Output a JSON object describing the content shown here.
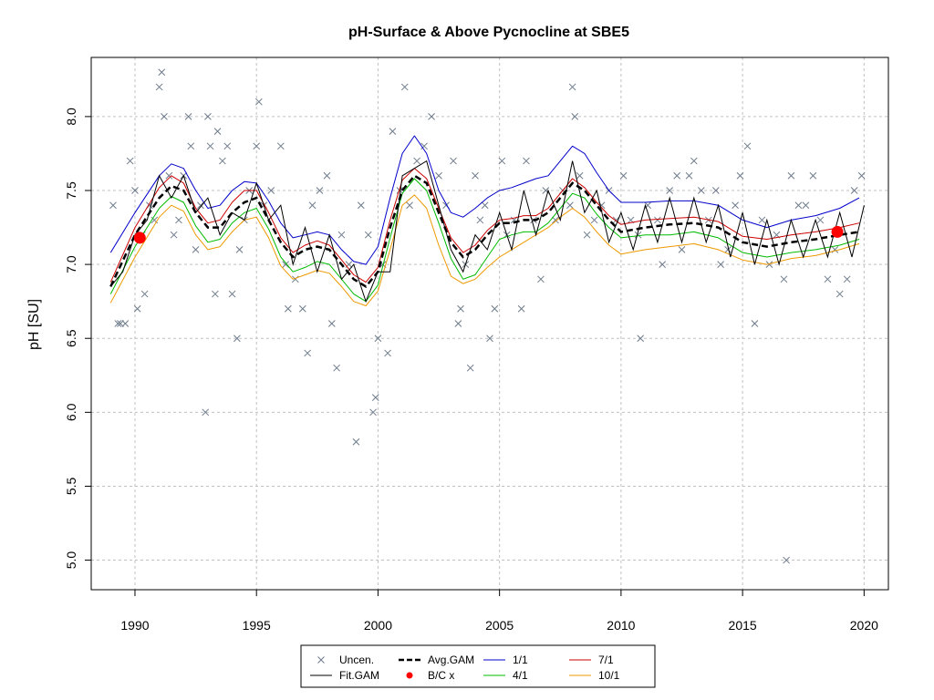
{
  "chart_data": {
    "type": "scatter",
    "title": "pH-Surface & Above Pycnocline at SBE5",
    "xlabel": "",
    "ylabel": "pH [SU]",
    "xlim": [
      1988.2,
      2021.0
    ],
    "ylim": [
      4.8,
      8.4
    ],
    "x_ticks": [
      "1990",
      "1995",
      "2000",
      "2005",
      "2010",
      "2015",
      "2020"
    ],
    "y_ticks": [
      "5.0",
      "5.5",
      "6.0",
      "6.5",
      "7.0",
      "7.5",
      "8.0"
    ],
    "grid": true,
    "legend_position": "bottom",
    "legend": [
      {
        "key": "uncen",
        "label": "Uncen.",
        "symbol": "x",
        "color": "#6e7b8b"
      },
      {
        "key": "avg_gam",
        "label": "Avg.GAM",
        "symbol": "dashed-line",
        "color": "#000000"
      },
      {
        "key": "s_1_1",
        "label": "1/1",
        "symbol": "line",
        "color": "#0000cc"
      },
      {
        "key": "s_7_1",
        "label": "7/1",
        "symbol": "line",
        "color": "#cc0000"
      },
      {
        "key": "fit_gam",
        "label": "Fit.GAM",
        "symbol": "line",
        "color": "#000000"
      },
      {
        "key": "bc_x",
        "label": "B/C x",
        "symbol": "dot",
        "color": "#ff0000"
      },
      {
        "key": "s_4_1",
        "label": "4/1",
        "symbol": "line",
        "color": "#00bb00"
      },
      {
        "key": "s_10_1",
        "label": "10/1",
        "symbol": "line",
        "color": "#ee9900"
      }
    ],
    "colors": {
      "uncen": "#6e7b8b",
      "avg_gam": "#000000",
      "fit_gam": "#000000",
      "s_1_1": "#0000cc",
      "s_7_1": "#cc0000",
      "s_4_1": "#00bb00",
      "s_10_1": "#ee9900",
      "bc_x": "#ff0000",
      "grid": "#c0c0c0"
    },
    "uncensored_points": [
      [
        1989.1,
        7.4
      ],
      [
        1989.3,
        6.6
      ],
      [
        1989.4,
        6.6
      ],
      [
        1989.6,
        6.6
      ],
      [
        1989.8,
        7.7
      ],
      [
        1990.0,
        7.5
      ],
      [
        1990.1,
        6.7
      ],
      [
        1990.3,
        7.2
      ],
      [
        1990.4,
        6.8
      ],
      [
        1990.6,
        7.4
      ],
      [
        1990.8,
        7.3
      ],
      [
        1991.0,
        8.2
      ],
      [
        1991.1,
        8.3
      ],
      [
        1991.2,
        8.0
      ],
      [
        1991.4,
        7.6
      ],
      [
        1991.6,
        7.2
      ],
      [
        1991.8,
        7.3
      ],
      [
        1992.0,
        7.6
      ],
      [
        1992.2,
        8.0
      ],
      [
        1992.3,
        7.8
      ],
      [
        1992.5,
        7.1
      ],
      [
        1992.7,
        7.4
      ],
      [
        1992.9,
        6.0
      ],
      [
        1993.0,
        8.0
      ],
      [
        1993.1,
        7.8
      ],
      [
        1993.3,
        6.8
      ],
      [
        1993.4,
        7.9
      ],
      [
        1993.6,
        7.7
      ],
      [
        1993.8,
        7.8
      ],
      [
        1994.0,
        6.8
      ],
      [
        1994.2,
        6.5
      ],
      [
        1994.3,
        7.1
      ],
      [
        1994.5,
        7.3
      ],
      [
        1994.7,
        7.5
      ],
      [
        1995.0,
        7.8
      ],
      [
        1995.1,
        8.1
      ],
      [
        1995.3,
        7.4
      ],
      [
        1995.6,
        7.5
      ],
      [
        1996.0,
        7.8
      ],
      [
        1996.2,
        7.0
      ],
      [
        1996.3,
        6.7
      ],
      [
        1996.6,
        6.9
      ],
      [
        1996.9,
        6.7
      ],
      [
        1997.1,
        6.4
      ],
      [
        1997.3,
        7.4
      ],
      [
        1997.6,
        7.5
      ],
      [
        1997.9,
        7.6
      ],
      [
        1998.1,
        6.6
      ],
      [
        1998.3,
        6.3
      ],
      [
        1998.5,
        7.2
      ],
      [
        1998.8,
        7.0
      ],
      [
        1999.1,
        5.8
      ],
      [
        1999.3,
        7.4
      ],
      [
        1999.6,
        7.2
      ],
      [
        1999.8,
        6.0
      ],
      [
        1999.9,
        6.1
      ],
      [
        2000.0,
        6.5
      ],
      [
        2000.2,
        7.0
      ],
      [
        2000.4,
        6.4
      ],
      [
        2000.6,
        7.9
      ],
      [
        2000.9,
        7.5
      ],
      [
        2001.1,
        8.2
      ],
      [
        2001.3,
        7.4
      ],
      [
        2001.6,
        7.7
      ],
      [
        2001.9,
        7.8
      ],
      [
        2002.2,
        8.0
      ],
      [
        2002.5,
        7.6
      ],
      [
        2002.8,
        7.4
      ],
      [
        2003.1,
        7.7
      ],
      [
        2003.3,
        6.6
      ],
      [
        2003.4,
        6.7
      ],
      [
        2003.6,
        7.0
      ],
      [
        2003.8,
        6.3
      ],
      [
        2004.0,
        7.6
      ],
      [
        2004.2,
        7.3
      ],
      [
        2004.4,
        7.4
      ],
      [
        2004.6,
        6.5
      ],
      [
        2004.8,
        6.7
      ],
      [
        2005.1,
        7.7
      ],
      [
        2005.3,
        7.2
      ],
      [
        2005.6,
        7.3
      ],
      [
        2005.9,
        6.7
      ],
      [
        2006.1,
        7.7
      ],
      [
        2006.4,
        7.3
      ],
      [
        2006.7,
        6.9
      ],
      [
        2006.9,
        7.5
      ],
      [
        2007.3,
        7.3
      ],
      [
        2007.6,
        7.5
      ],
      [
        2007.9,
        7.4
      ],
      [
        2008.0,
        8.2
      ],
      [
        2008.1,
        8.0
      ],
      [
        2008.3,
        7.6
      ],
      [
        2008.6,
        7.2
      ],
      [
        2008.9,
        7.3
      ],
      [
        2009.2,
        7.4
      ],
      [
        2009.5,
        7.5
      ],
      [
        2009.8,
        7.3
      ],
      [
        2010.1,
        7.6
      ],
      [
        2010.4,
        7.3
      ],
      [
        2010.7,
        7.2
      ],
      [
        2010.8,
        6.5
      ],
      [
        2011.1,
        7.4
      ],
      [
        2011.5,
        7.3
      ],
      [
        2011.7,
        7.0
      ],
      [
        2012.0,
        7.5
      ],
      [
        2012.3,
        7.6
      ],
      [
        2012.5,
        7.1
      ],
      [
        2012.8,
        7.6
      ],
      [
        2013.0,
        7.7
      ],
      [
        2013.3,
        7.5
      ],
      [
        2013.6,
        7.3
      ],
      [
        2013.9,
        7.5
      ],
      [
        2014.1,
        7.0
      ],
      [
        2014.4,
        7.1
      ],
      [
        2014.7,
        7.4
      ],
      [
        2014.9,
        7.6
      ],
      [
        2015.2,
        7.8
      ],
      [
        2015.5,
        6.6
      ],
      [
        2015.8,
        7.3
      ],
      [
        2016.1,
        7.0
      ],
      [
        2016.4,
        7.2
      ],
      [
        2016.7,
        6.9
      ],
      [
        2016.8,
        5.0
      ],
      [
        2017.0,
        7.6
      ],
      [
        2017.3,
        7.4
      ],
      [
        2017.6,
        7.4
      ],
      [
        2017.9,
        7.6
      ],
      [
        2018.2,
        7.3
      ],
      [
        2018.5,
        6.9
      ],
      [
        2018.8,
        7.1
      ],
      [
        2019.0,
        6.8
      ],
      [
        2019.3,
        6.9
      ],
      [
        2019.6,
        7.5
      ],
      [
        2019.9,
        7.6
      ]
    ],
    "fit_gam": {
      "x": [
        1989.0,
        1989.5,
        1990.0,
        1990.5,
        1991.0,
        1991.5,
        1992.0,
        1992.5,
        1993.0,
        1993.5,
        1994.0,
        1994.5,
        1995.0,
        1995.5,
        1996.0,
        1996.5,
        1997.0,
        1997.5,
        1998.0,
        1998.5,
        1999.0,
        1999.5,
        2000.0,
        2000.5,
        2001.0,
        2001.5,
        2002.0,
        2002.5,
        2003.0,
        2003.5,
        2004.0,
        2004.5,
        2005.0,
        2005.5,
        2006.0,
        2006.5,
        2007.0,
        2007.5,
        2008.0,
        2008.5,
        2009.0,
        2009.5,
        2010.0,
        2010.5,
        2011.0,
        2011.5,
        2012.0,
        2012.5,
        2013.0,
        2013.5,
        2014.0,
        2014.5,
        2015.0,
        2015.5,
        2016.0,
        2016.5,
        2017.0,
        2017.5,
        2018.0,
        2018.5,
        2019.0,
        2019.5,
        2020.0
      ],
      "y": [
        6.85,
        6.95,
        7.2,
        7.3,
        7.6,
        7.45,
        7.6,
        7.35,
        7.45,
        7.2,
        7.35,
        7.3,
        7.55,
        7.3,
        7.4,
        7.0,
        7.25,
        6.95,
        7.2,
        6.9,
        7.0,
        6.75,
        6.95,
        6.95,
        7.6,
        7.65,
        7.7,
        7.4,
        7.1,
        6.95,
        7.2,
        7.1,
        7.35,
        7.1,
        7.5,
        7.2,
        7.5,
        7.3,
        7.7,
        7.35,
        7.5,
        7.15,
        7.35,
        7.1,
        7.4,
        7.15,
        7.45,
        7.15,
        7.45,
        7.15,
        7.4,
        7.05,
        7.35,
        7.0,
        7.3,
        7.0,
        7.3,
        7.05,
        7.3,
        7.05,
        7.35,
        7.05,
        7.4
      ]
    },
    "avg_gam": {
      "x": [
        1989.0,
        1990.0,
        1991.0,
        1991.5,
        1992.0,
        1992.5,
        1993.0,
        1993.5,
        1994.0,
        1994.5,
        1995.0,
        1995.5,
        1996.0,
        1996.5,
        1997.0,
        1997.5,
        1998.0,
        1998.5,
        1999.0,
        1999.5,
        2000.0,
        2000.5,
        2001.0,
        2001.5,
        2002.0,
        2002.5,
        2003.0,
        2003.5,
        2004.0,
        2004.5,
        2005.0,
        2005.5,
        2006.0,
        2006.5,
        2007.0,
        2007.5,
        2008.0,
        2008.5,
        2009.0,
        2009.5,
        2010.0,
        2011.0,
        2012.0,
        2013.0,
        2014.0,
        2015.0,
        2016.0,
        2017.0,
        2018.0,
        2019.0,
        2019.8
      ],
      "y": [
        6.85,
        7.2,
        7.45,
        7.53,
        7.5,
        7.35,
        7.25,
        7.25,
        7.35,
        7.42,
        7.45,
        7.3,
        7.15,
        7.05,
        7.1,
        7.12,
        7.1,
        7.0,
        6.9,
        6.85,
        6.95,
        7.25,
        7.5,
        7.6,
        7.55,
        7.35,
        7.15,
        7.05,
        7.1,
        7.2,
        7.28,
        7.28,
        7.3,
        7.3,
        7.35,
        7.45,
        7.55,
        7.5,
        7.4,
        7.3,
        7.22,
        7.25,
        7.27,
        7.28,
        7.25,
        7.15,
        7.12,
        7.15,
        7.17,
        7.2,
        7.22
      ]
    },
    "seasonal_curves": [
      {
        "key": "s_1_1",
        "x": [
          1989.0,
          1990.0,
          1991.0,
          1991.5,
          1992.0,
          1992.5,
          1993.0,
          1993.5,
          1994.0,
          1994.5,
          1995.0,
          1995.5,
          1996.0,
          1996.5,
          1997.0,
          1997.5,
          1998.0,
          1998.5,
          1999.0,
          1999.5,
          2000.0,
          2000.5,
          2001.0,
          2001.5,
          2002.0,
          2002.5,
          2003.0,
          2003.5,
          2004.0,
          2004.5,
          2005.0,
          2005.5,
          2006.0,
          2006.5,
          2007.0,
          2007.5,
          2008.0,
          2008.5,
          2009.0,
          2009.5,
          2010.0,
          2011.0,
          2012.0,
          2013.0,
          2014.0,
          2015.0,
          2016.0,
          2017.0,
          2018.0,
          2019.0,
          2019.8
        ],
        "y": [
          7.08,
          7.35,
          7.6,
          7.68,
          7.65,
          7.5,
          7.38,
          7.4,
          7.5,
          7.56,
          7.55,
          7.43,
          7.28,
          7.18,
          7.2,
          7.22,
          7.2,
          7.1,
          7.02,
          7.0,
          7.12,
          7.45,
          7.75,
          7.87,
          7.75,
          7.5,
          7.35,
          7.32,
          7.38,
          7.45,
          7.5,
          7.52,
          7.55,
          7.58,
          7.6,
          7.7,
          7.8,
          7.75,
          7.62,
          7.5,
          7.42,
          7.42,
          7.43,
          7.43,
          7.4,
          7.3,
          7.25,
          7.3,
          7.33,
          7.38,
          7.45
        ]
      },
      {
        "key": "s_7_1",
        "x": [
          1989.0,
          1990.0,
          1991.0,
          1991.5,
          1992.0,
          1992.5,
          1993.0,
          1993.5,
          1994.0,
          1994.5,
          1995.0,
          1995.5,
          1996.0,
          1996.5,
          1997.0,
          1997.5,
          1998.0,
          1998.5,
          1999.0,
          1999.5,
          2000.0,
          2000.5,
          2001.0,
          2001.5,
          2002.0,
          2002.5,
          2003.0,
          2003.5,
          2004.0,
          2004.5,
          2005.0,
          2005.5,
          2006.0,
          2006.5,
          2007.0,
          2007.5,
          2008.0,
          2008.5,
          2009.0,
          2009.5,
          2010.0,
          2011.0,
          2012.0,
          2013.0,
          2014.0,
          2015.0,
          2016.0,
          2017.0,
          2018.0,
          2019.0,
          2019.8
        ],
        "y": [
          6.88,
          7.25,
          7.52,
          7.6,
          7.55,
          7.38,
          7.28,
          7.3,
          7.42,
          7.5,
          7.5,
          7.35,
          7.18,
          7.08,
          7.13,
          7.16,
          7.13,
          7.03,
          6.93,
          6.88,
          6.98,
          7.3,
          7.57,
          7.65,
          7.58,
          7.38,
          7.18,
          7.08,
          7.13,
          7.23,
          7.3,
          7.31,
          7.33,
          7.33,
          7.38,
          7.48,
          7.58,
          7.52,
          7.42,
          7.33,
          7.27,
          7.3,
          7.31,
          7.32,
          7.29,
          7.19,
          7.17,
          7.2,
          7.22,
          7.25,
          7.28
        ]
      },
      {
        "key": "s_4_1",
        "x": [
          1989.0,
          1990.0,
          1991.0,
          1991.5,
          1992.0,
          1992.5,
          1993.0,
          1993.5,
          1994.0,
          1994.5,
          1995.0,
          1995.5,
          1996.0,
          1996.5,
          1997.0,
          1997.5,
          1998.0,
          1998.5,
          1999.0,
          1999.5,
          2000.0,
          2000.5,
          2001.0,
          2001.5,
          2002.0,
          2002.5,
          2003.0,
          2003.5,
          2004.0,
          2004.5,
          2005.0,
          2005.5,
          2006.0,
          2006.5,
          2007.0,
          2007.5,
          2008.0,
          2008.5,
          2009.0,
          2009.5,
          2010.0,
          2011.0,
          2012.0,
          2013.0,
          2014.0,
          2015.0,
          2016.0,
          2017.0,
          2018.0,
          2019.0,
          2019.8
        ],
        "y": [
          6.8,
          7.12,
          7.38,
          7.46,
          7.42,
          7.26,
          7.15,
          7.17,
          7.28,
          7.35,
          7.38,
          7.24,
          7.05,
          6.95,
          6.98,
          7.02,
          7.0,
          6.9,
          6.8,
          6.75,
          6.86,
          7.18,
          7.48,
          7.58,
          7.5,
          7.28,
          7.04,
          6.9,
          6.93,
          7.05,
          7.17,
          7.2,
          7.22,
          7.22,
          7.28,
          7.38,
          7.48,
          7.45,
          7.34,
          7.25,
          7.18,
          7.2,
          7.2,
          7.22,
          7.18,
          7.08,
          7.05,
          7.08,
          7.1,
          7.13,
          7.17
        ]
      },
      {
        "key": "s_10_1",
        "x": [
          1989.0,
          1990.0,
          1991.0,
          1991.5,
          1992.0,
          1992.5,
          1993.0,
          1993.5,
          1994.0,
          1994.5,
          1995.0,
          1995.5,
          1996.0,
          1996.5,
          1997.0,
          1997.5,
          1998.0,
          1998.5,
          1999.0,
          1999.5,
          2000.0,
          2000.5,
          2001.0,
          2001.5,
          2002.0,
          2002.5,
          2003.0,
          2003.5,
          2004.0,
          2004.5,
          2005.0,
          2005.5,
          2006.0,
          2006.5,
          2007.0,
          2007.5,
          2008.0,
          2008.5,
          2009.0,
          2009.5,
          2010.0,
          2011.0,
          2012.0,
          2013.0,
          2014.0,
          2015.0,
          2016.0,
          2017.0,
          2018.0,
          2019.0,
          2019.8
        ],
        "y": [
          6.74,
          7.05,
          7.32,
          7.4,
          7.36,
          7.2,
          7.1,
          7.12,
          7.22,
          7.3,
          7.32,
          7.18,
          6.99,
          6.9,
          6.93,
          6.96,
          6.94,
          6.85,
          6.75,
          6.72,
          6.82,
          7.1,
          7.4,
          7.47,
          7.38,
          7.13,
          6.92,
          6.87,
          6.9,
          6.98,
          7.05,
          7.1,
          7.15,
          7.2,
          7.25,
          7.32,
          7.38,
          7.32,
          7.22,
          7.13,
          7.07,
          7.1,
          7.12,
          7.14,
          7.1,
          7.03,
          7.0,
          7.04,
          7.06,
          7.1,
          7.14
        ]
      }
    ],
    "bc_points": [
      [
        1990.2,
        7.18
      ],
      [
        2018.9,
        7.22
      ]
    ]
  }
}
